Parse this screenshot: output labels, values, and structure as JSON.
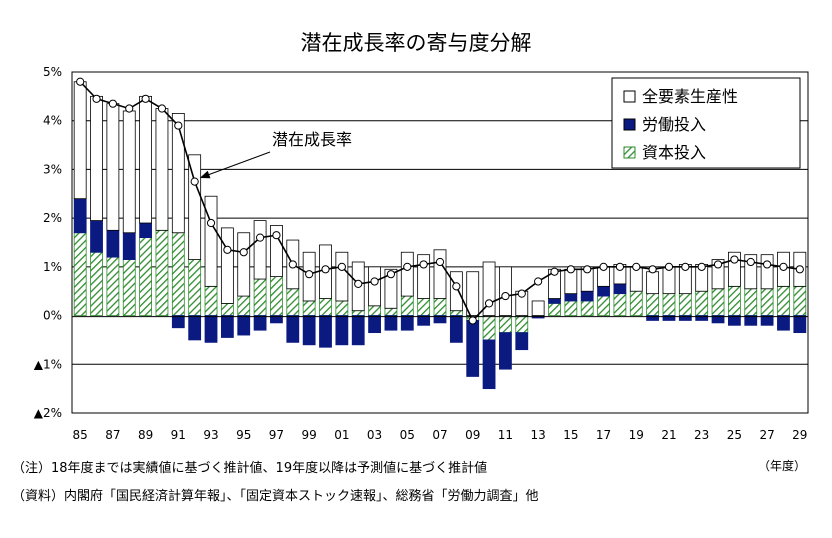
{
  "chart_data": {
    "type": "bar",
    "title": "潜在成長率の寄与度分解",
    "stacked": true,
    "x_unit_label": "（年度）",
    "ylim": [
      -2,
      5
    ],
    "y_ticks": [
      {
        "value": 5,
        "label": "5%"
      },
      {
        "value": 4,
        "label": "4%"
      },
      {
        "value": 3,
        "label": "3%"
      },
      {
        "value": 2,
        "label": "2%"
      },
      {
        "value": 1,
        "label": "1%"
      },
      {
        "value": 0,
        "label": "0%"
      },
      {
        "value": -1,
        "label": "▲1%"
      },
      {
        "value": -2,
        "label": "▲2%"
      }
    ],
    "categories": [
      "85",
      "86",
      "87",
      "88",
      "89",
      "90",
      "91",
      "92",
      "93",
      "94",
      "95",
      "96",
      "97",
      "98",
      "99",
      "00",
      "01",
      "02",
      "03",
      "04",
      "05",
      "06",
      "07",
      "08",
      "09",
      "10",
      "11",
      "12",
      "13",
      "14",
      "15",
      "16",
      "17",
      "18",
      "19",
      "20",
      "21",
      "22",
      "23",
      "24",
      "25",
      "26",
      "27",
      "28",
      "29"
    ],
    "x_tick_labels": [
      "85",
      "87",
      "89",
      "91",
      "93",
      "95",
      "97",
      "99",
      "01",
      "03",
      "05",
      "07",
      "09",
      "11",
      "13",
      "15",
      "17",
      "19",
      "21",
      "23",
      "25",
      "27",
      "29"
    ],
    "series": [
      {
        "name": "全要素生産性",
        "color": "#ffffff",
        "pattern": "none",
        "values": [
          2.4,
          2.55,
          2.6,
          2.5,
          2.6,
          2.5,
          2.45,
          2.15,
          1.85,
          1.55,
          1.3,
          1.2,
          1.05,
          1.0,
          1.0,
          1.1,
          1.0,
          1.0,
          0.8,
          0.8,
          0.9,
          0.9,
          1.0,
          0.8,
          0.9,
          1.1,
          1.0,
          0.5,
          0.3,
          0.6,
          0.5,
          0.5,
          0.4,
          0.4,
          0.5,
          0.45,
          0.55,
          0.6,
          0.55,
          0.6,
          0.7,
          0.7,
          0.7,
          0.7,
          0.7
        ]
      },
      {
        "name": "労働投入",
        "color": "#0b1a80",
        "pattern": "solid",
        "values": [
          0.7,
          0.65,
          0.55,
          0.55,
          0.3,
          0.0,
          -0.25,
          -0.5,
          -0.55,
          -0.45,
          -0.4,
          -0.3,
          -0.15,
          -0.55,
          -0.6,
          -0.65,
          -0.6,
          -0.6,
          -0.35,
          -0.3,
          -0.3,
          -0.2,
          -0.15,
          -0.55,
          -1.15,
          -1.0,
          -0.75,
          -0.35,
          -0.05,
          0.1,
          0.15,
          0.2,
          0.2,
          0.2,
          0.0,
          -0.1,
          -0.1,
          -0.1,
          -0.1,
          -0.15,
          -0.2,
          -0.2,
          -0.2,
          -0.3,
          -0.35
        ]
      },
      {
        "name": "資本投入",
        "color": "#2e8b2e",
        "pattern": "hatch",
        "values": [
          1.7,
          1.3,
          1.2,
          1.15,
          1.6,
          1.75,
          1.7,
          1.15,
          0.6,
          0.25,
          0.4,
          0.75,
          0.8,
          0.55,
          0.3,
          0.35,
          0.3,
          0.1,
          0.2,
          0.15,
          0.4,
          0.35,
          0.35,
          0.1,
          -0.1,
          -0.5,
          -0.35,
          -0.35,
          0.0,
          0.25,
          0.3,
          0.3,
          0.4,
          0.45,
          0.5,
          0.45,
          0.45,
          0.45,
          0.5,
          0.55,
          0.6,
          0.55,
          0.55,
          0.6,
          0.6
        ]
      },
      {
        "name": "潜在成長率",
        "type": "line",
        "color": "#000000",
        "values": [
          4.8,
          4.45,
          4.35,
          4.25,
          4.45,
          4.25,
          3.9,
          2.75,
          1.9,
          1.35,
          1.3,
          1.6,
          1.65,
          1.05,
          0.85,
          0.95,
          1.0,
          0.65,
          0.7,
          0.85,
          1.0,
          1.05,
          1.1,
          0.6,
          -0.1,
          0.25,
          0.4,
          0.45,
          0.7,
          0.9,
          0.95,
          0.95,
          1.0,
          1.0,
          1.0,
          0.95,
          1.0,
          1.0,
          1.0,
          1.05,
          1.15,
          1.1,
          1.05,
          1.0,
          0.95
        ]
      }
    ],
    "legend": {
      "placement": "top-right"
    },
    "annotation": {
      "text": "潜在成長率",
      "target_category": "92"
    },
    "grid": {
      "horizontal": true,
      "vertical": false
    }
  },
  "notes": [
    "（注）18年度までは実績値に基づく推計値、19年度以降は予測値に基づく推計値",
    "（資料）内閣府「国民経済計算年報」、「固定資本ストック速報」、総務省「労働力調査」他"
  ]
}
